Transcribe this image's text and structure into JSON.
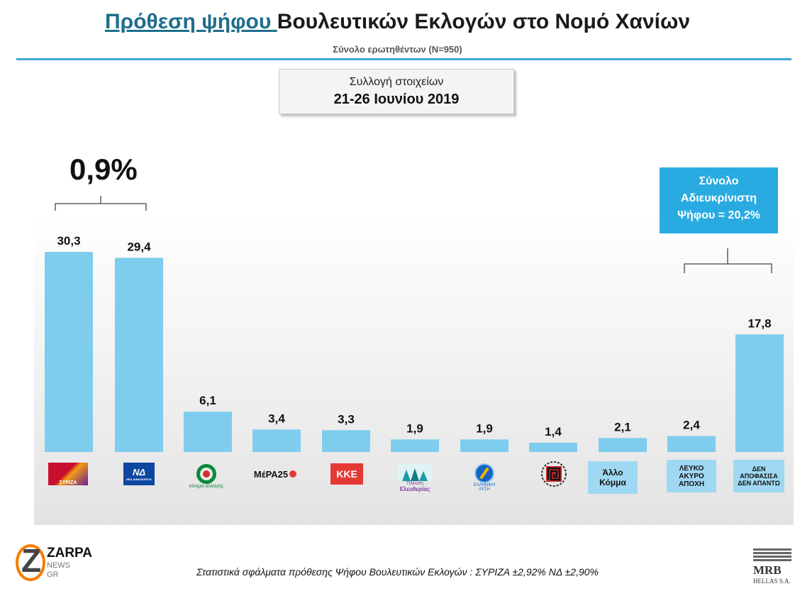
{
  "header": {
    "title_highlight": "Πρόθεση ψήφου ",
    "title_rest": "Βουλευτικών Εκλογών στο Νομό Χανίων",
    "subtitle": "Σύνολο ερωτηθέντων (Ν=950)"
  },
  "collection": {
    "label": "Συλλογή  στοιχείων",
    "dates": "21-26 Ιουνίου 2019"
  },
  "gap_annotation": "0,9%",
  "undecided_box": {
    "line1": "Σύνολο",
    "line2": "Αδιευκρίνιστη",
    "line3": "Ψήφου = 20,2%"
  },
  "chart_data": {
    "type": "bar",
    "categories": [
      "ΣΥΡΙΖΑ",
      "ΝΔ",
      "Κίνημα Αλλαγής",
      "ΜέΡΑ25",
      "ΚΚΕ",
      "Πλεύση Ελευθερίας",
      "Ελληνική Λύση",
      "Χρυσή Αυγή",
      "Άλλο Κόμμα",
      "ΛΕΥΚΟ ΑΚΥΡΟ ΑΠΟΧΗ",
      "ΔΕΝ ΑΠΟΦΑΣΙΣΑ ΔΕΝ ΑΠΑΝΤΩ"
    ],
    "values": [
      30.3,
      29.4,
      6.1,
      3.4,
      3.3,
      1.9,
      1.9,
      1.4,
      2.1,
      2.4,
      17.8
    ],
    "value_labels": [
      "30,3",
      "29,4",
      "6,1",
      "3,4",
      "3,3",
      "1,9",
      "1,9",
      "1,4",
      "2,1",
      "2,4",
      "17,8"
    ],
    "bar_color": "#7ecdee",
    "ylim": [
      0,
      30.3
    ]
  },
  "party_logos": {
    "syriza": "ΣΥΡΙΖΑ",
    "nd": "ΝΔ",
    "nd_sub": "ΝΕΑ ΔΗΜΟΚΡΑΤΙΑ",
    "kinal": "κίνημα αλλαγής",
    "mera25": "ΜέΡΑ25",
    "kke": "ΚΚΕ",
    "plefsi_1": "Πλεύση",
    "plefsi_2": "Ελευθερίας",
    "el_lysi_1": "ΕΛΛΗΝΙΚΗ",
    "el_lysi_2": "ΛΥΣΗ"
  },
  "text_labels": {
    "allo_1": "Άλλο",
    "allo_2": "Κόμμα",
    "lefko_1": "ΛΕΥΚΟ",
    "lefko_2": "ΑΚΥΡΟ",
    "lefko_3": "ΑΠΟΧΗ",
    "den_1": "ΔΕΝ",
    "den_2": "ΑΠΟΦΑΣΙΣΑ",
    "den_3": "ΔΕΝ ΑΠΑΝΤΩ"
  },
  "footer": "Στατιστικά σφάλματα πρόθεσης Ψήφου Βουλευτικών Εκλογών : ΣΥΡΙΖΑ ±2,92% ΝΔ ±2,90%",
  "brand": {
    "zarpa": "ZARPA",
    "zarpa_sub1": "NEWS",
    "zarpa_sub2": "GR",
    "mrb": "MRB",
    "mrb_sub": "HELLAS S.A."
  }
}
